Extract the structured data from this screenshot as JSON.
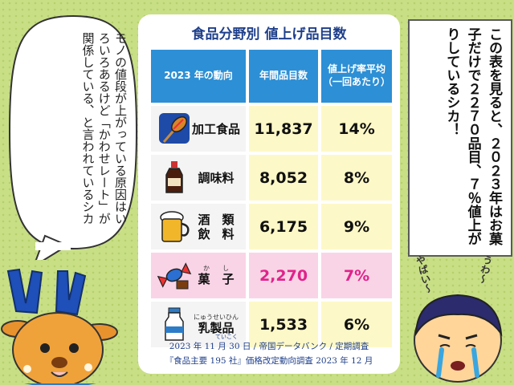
{
  "table": {
    "title": "食品分野別 値上げ品目数",
    "headers": [
      "2023 年の動向",
      "年間品目数",
      "値上げ率平均",
      "（一回あたり）"
    ],
    "rows": [
      {
        "category": "加工食品",
        "count": "11,837",
        "rate": "14%",
        "icon": "corndog-icon"
      },
      {
        "category": "調味料",
        "count": "8,052",
        "rate": "8%",
        "icon": "soy-sauce-bottle-icon"
      },
      {
        "category_line1": "酒　類",
        "category_line2": "飲　料",
        "count": "6,175",
        "rate": "9%",
        "icon": "beer-mug-icon"
      },
      {
        "category": "菓　子",
        "reading": "か　　し",
        "count": "2,270",
        "rate": "7%",
        "icon": "candy-icon",
        "highlight": true
      },
      {
        "category": "乳製品",
        "reading": "にゅうせいひん",
        "count": "1,533",
        "rate": "6%",
        "icon": "milk-bottle-icon"
      }
    ],
    "source_line1": "2023 年 11 月 30 日 / 帝国データバンク / 定期調査",
    "source_ruby": "ていこく",
    "source_line2": "『食品主要 195 社』価格改定動向調査 2023 年 12 月"
  },
  "left_bubble": {
    "text": "モノの値段が上がっている原因はいろいろあるけど「かわせレート」が関係している、と言われているシカ",
    "shika": "シカ"
  },
  "right_box": {
    "text": "この表を見ると、２０２３年はお菓子だけで２２７０品目、７％値上がりしているシカ！"
  },
  "shouts": {
    "left": "やばい〜",
    "right": "うわ〜"
  },
  "colors": {
    "header_blue": "#2d8fd5",
    "title_navy": "#1e3f8a",
    "highlight_pink": "#f9d4e6",
    "highlight_text": "#e0238b",
    "value_bg": "#fdf8c7",
    "background_green": "#c8df86"
  }
}
